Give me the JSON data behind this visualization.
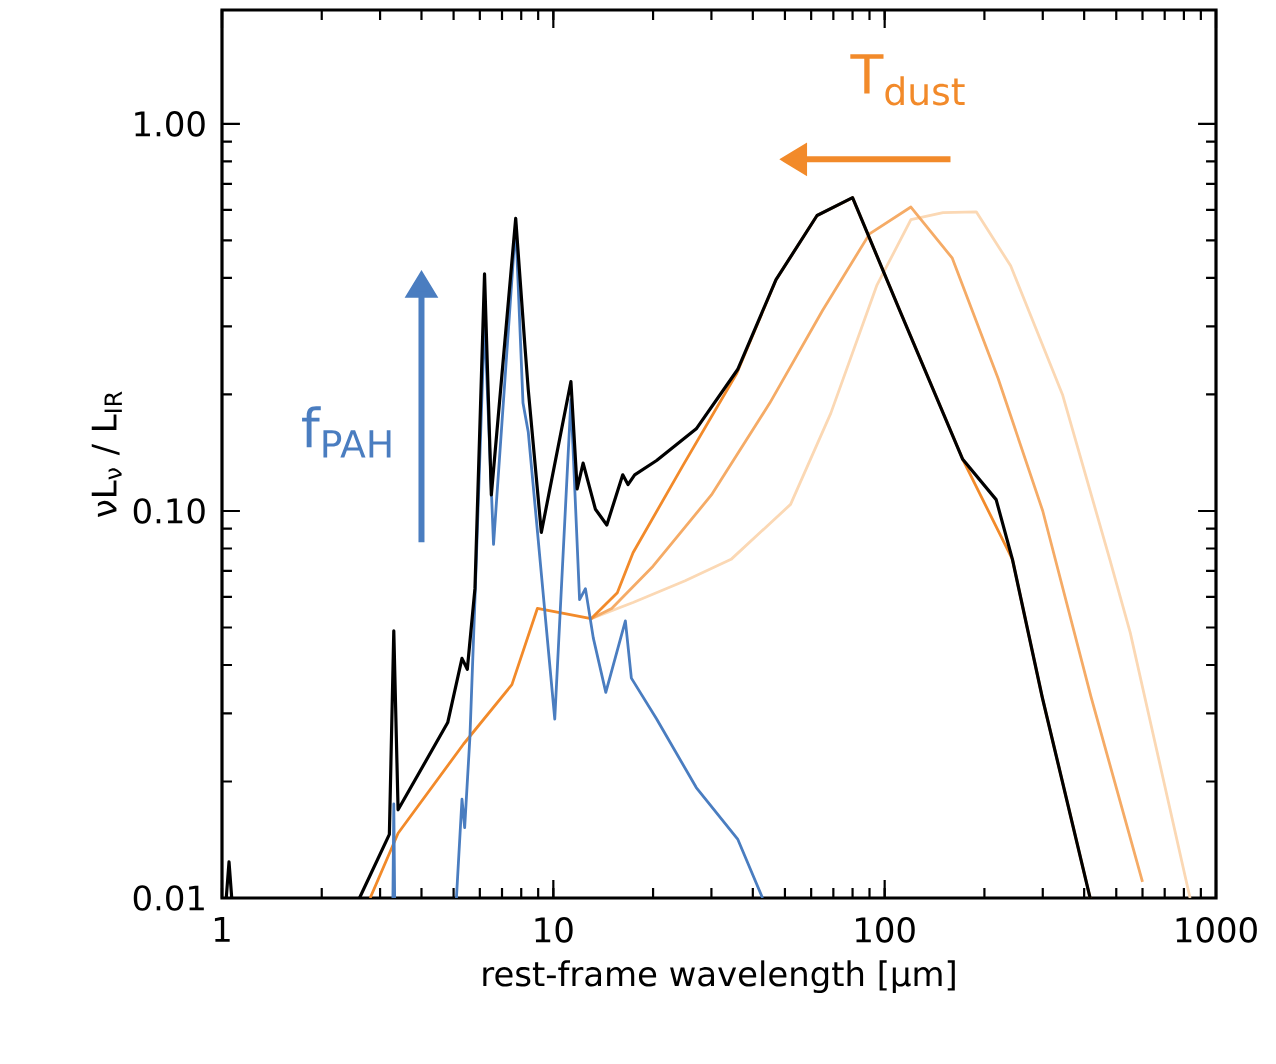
{
  "chart_data": {
    "type": "line",
    "xlabel": "rest-frame wavelength [μm]",
    "ylabel": "νL$_{ν}$ / L$_{IR}$",
    "log": "xy",
    "xlim": [
      1,
      1000
    ],
    "ylim": [
      0.01,
      1.97
    ],
    "xticks": [
      1,
      10,
      100,
      1000
    ],
    "yticks": [
      {
        "value": 0.01,
        "label": "0.01"
      },
      {
        "value": 0.1,
        "label": "0.10"
      },
      {
        "value": 1,
        "label": "1.00"
      }
    ],
    "annotations": [
      "f$_{PAH}$",
      "T$_{dust}$"
    ],
    "series": [
      {
        "color": "#fbd8b4",
        "x": [
          13,
          17.4,
          25,
          34.4,
          52,
          68.8,
          94.6,
          120,
          150,
          189,
          240,
          344,
          478,
          551,
          835
        ],
        "values": [
          0.0527,
          0.058,
          0.066,
          0.075,
          0.104,
          0.179,
          0.382,
          0.566,
          0.59,
          0.593,
          0.43,
          0.2,
          0.075,
          0.0485,
          0.01
        ]
      },
      {
        "color": "#f5ab66",
        "x": [
          13,
          15,
          20,
          30,
          45,
          65,
          90,
          120,
          160,
          220,
          300,
          420,
          600
        ],
        "values": [
          0.0527,
          0.056,
          0.072,
          0.11,
          0.19,
          0.33,
          0.52,
          0.61,
          0.45,
          0.22,
          0.1,
          0.033,
          0.011
        ]
      },
      {
        "color": "#f28a2a",
        "x": [
          2.8,
          3.4,
          5.36,
          7.5,
          8.95,
          13,
          15.6,
          17.4,
          24.6,
          35.8,
          47,
          62.5,
          80,
          111,
          172,
          243,
          299,
          417
        ],
        "values": [
          0.01,
          0.0147,
          0.025,
          0.0356,
          0.056,
          0.0527,
          0.0615,
          0.078,
          0.131,
          0.227,
          0.396,
          0.58,
          0.645,
          0.33,
          0.136,
          0.075,
          0.033,
          0.01
        ]
      },
      {
        "color": "#4a7dc0",
        "x": [
          3.28,
          3.3,
          3.32,
          4.0,
          5.1,
          5.3,
          5.4,
          5.6,
          5.8,
          6.2,
          6.6,
          7.7,
          8.1,
          8.4,
          10.1,
          11.3,
          12.0,
          12.5,
          13.2,
          14.4,
          16.5,
          17.2,
          20.5,
          27,
          36,
          42.8
        ],
        "values": [
          0.01,
          0.0175,
          0.01,
          null,
          0.01,
          0.018,
          0.0152,
          0.026,
          0.059,
          0.31,
          0.082,
          0.55,
          0.19,
          0.16,
          0.029,
          0.194,
          0.059,
          0.063,
          0.047,
          0.034,
          0.052,
          0.037,
          0.029,
          0.0193,
          0.0142,
          0.01
        ]
      },
      {
        "color": "#000000",
        "x": [
          1.03,
          1.05,
          1.07,
          2.0,
          2.6,
          3.2,
          3.3,
          3.4,
          4.8,
          5.3,
          5.5,
          5.8,
          6.2,
          6.5,
          7.7,
          8.2,
          8.4,
          9.2,
          11.3,
          11.8,
          12.3,
          13.4,
          14.5,
          16.2,
          16.8,
          17.6,
          20.5,
          27,
          36,
          47,
          62.5,
          80,
          111,
          172,
          217,
          243,
          299,
          417
        ],
        "values": [
          0.01,
          0.0124,
          0.01,
          null,
          0.01,
          0.0146,
          0.049,
          0.0169,
          0.0284,
          0.0416,
          0.039,
          0.063,
          0.41,
          0.11,
          0.57,
          0.27,
          0.206,
          0.088,
          0.216,
          0.114,
          0.133,
          0.101,
          0.092,
          0.124,
          0.117,
          0.124,
          0.135,
          0.163,
          0.232,
          0.396,
          0.58,
          0.645,
          0.33,
          0.136,
          0.107,
          0.075,
          0.033,
          0.01
        ]
      }
    ]
  }
}
